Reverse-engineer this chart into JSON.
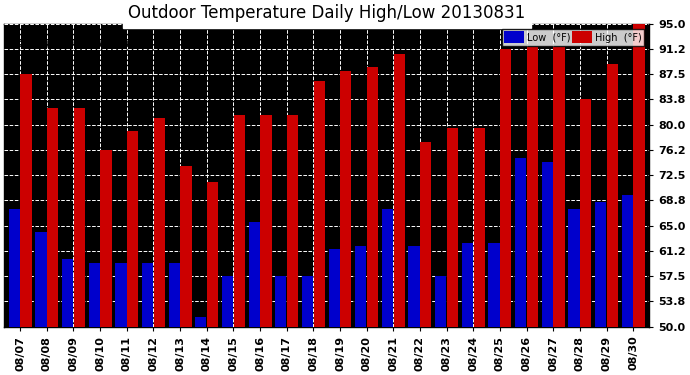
{
  "title": "Outdoor Temperature Daily High/Low 20130831",
  "dates": [
    "08/07",
    "08/08",
    "08/09",
    "08/10",
    "08/11",
    "08/12",
    "08/13",
    "08/14",
    "08/15",
    "08/16",
    "08/17",
    "08/18",
    "08/19",
    "08/20",
    "08/21",
    "08/22",
    "08/23",
    "08/24",
    "08/25",
    "08/26",
    "08/27",
    "08/28",
    "08/29",
    "08/30"
  ],
  "highs": [
    87.5,
    82.5,
    82.5,
    76.2,
    79.0,
    81.0,
    73.8,
    71.5,
    81.5,
    81.5,
    81.5,
    86.5,
    88.0,
    88.5,
    90.5,
    77.5,
    79.5,
    79.5,
    91.2,
    91.5,
    91.5,
    83.8,
    89.0,
    95.0
  ],
  "lows": [
    67.5,
    64.0,
    60.0,
    59.5,
    59.5,
    59.5,
    59.5,
    51.5,
    57.5,
    65.5,
    57.5,
    57.5,
    61.5,
    62.0,
    67.5,
    62.0,
    57.5,
    62.5,
    62.5,
    75.0,
    74.5,
    67.5,
    68.5,
    69.5
  ],
  "low_color": "#0000cc",
  "high_color": "#cc0000",
  "bg_color": "#000000",
  "plot_bg_color": "#000000",
  "outer_bg_color": "#ffffff",
  "grid_color": "#ffffff",
  "ymin": 50.0,
  "ymax": 95.0,
  "yticks": [
    50.0,
    53.8,
    57.5,
    61.2,
    65.0,
    68.8,
    72.5,
    76.2,
    80.0,
    83.8,
    87.5,
    91.2,
    95.0
  ],
  "title_fontsize": 12,
  "tick_fontsize": 8,
  "copyright_fontsize": 7,
  "legend_low_label": "Low  (°F)",
  "legend_high_label": "High  (°F)",
  "bar_width": 0.42,
  "bar_gap": 0.02
}
